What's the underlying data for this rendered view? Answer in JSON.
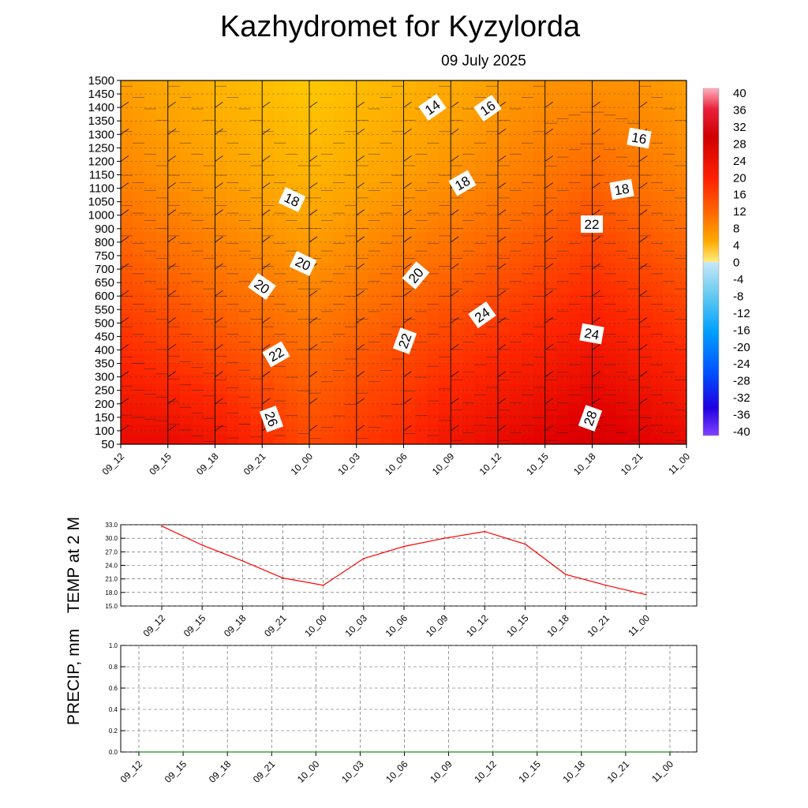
{
  "title": "Kazhydromet  for Kyzylorda",
  "subtitle": "09 July 2025",
  "colors": {
    "temp_line": "#ff0000",
    "precip_line": "#228b22",
    "contour": "#222222",
    "grid": "#555555"
  },
  "chart_data": [
    {
      "type": "heatmap",
      "name_hint": "vertical temperature cross-section",
      "x_categories": [
        "09_12",
        "09_15",
        "09_18",
        "09_21",
        "10_00",
        "10_03",
        "10_06",
        "10_09",
        "10_12",
        "10_15",
        "10_18",
        "10_21",
        "11_00"
      ],
      "y_levels": [
        50,
        100,
        150,
        200,
        250,
        300,
        350,
        400,
        450,
        500,
        550,
        600,
        650,
        700,
        750,
        800,
        900,
        1000,
        1050,
        1100,
        1150,
        1200,
        1250,
        1300,
        1350,
        1400,
        1450,
        1500
      ],
      "value_rows_bottom_to_top": [
        [
          27,
          27,
          26,
          24,
          22,
          23,
          24,
          26,
          27,
          28,
          29,
          28,
          27
        ],
        [
          24,
          23,
          22,
          21,
          20,
          21,
          22,
          23,
          24,
          25,
          26,
          25,
          24
        ],
        [
          21,
          20,
          19,
          18,
          17,
          18,
          19,
          20,
          21,
          22,
          23,
          22,
          21
        ],
        [
          18,
          17,
          16,
          15,
          14,
          15,
          16,
          17,
          18,
          19,
          20,
          19,
          18
        ],
        [
          16,
          15,
          14,
          13,
          12,
          13,
          14,
          15,
          16,
          17,
          17,
          17,
          16
        ]
      ],
      "contour_labels": [
        "14",
        "16",
        "16",
        "18",
        "18",
        "18",
        "20",
        "20",
        "20",
        "22",
        "22",
        "22",
        "24",
        "24",
        "26",
        "28"
      ],
      "colorbar": {
        "ticks": [
          "40",
          "36",
          "32",
          "28",
          "24",
          "20",
          "16",
          "12",
          "8",
          "4",
          "0",
          "-4",
          "-8",
          "-12",
          "-16",
          "-20",
          "-24",
          "-28",
          "-32",
          "-36",
          "-40"
        ],
        "range": [
          -40,
          40
        ]
      }
    },
    {
      "type": "line",
      "ylabel": "TEMP at 2 M",
      "x": [
        "09_12",
        "09_15",
        "09_18",
        "09_21",
        "10_00",
        "10_03",
        "10_06",
        "10_09",
        "10_12",
        "10_15",
        "10_18",
        "10_21",
        "11_00"
      ],
      "values": [
        32.7,
        28.5,
        25.0,
        21.2,
        19.6,
        25.5,
        28.2,
        30.0,
        31.5,
        28.7,
        22.0,
        19.6,
        17.5
      ],
      "yticks": [
        "15.0",
        "18.0",
        "21.0",
        "24.0",
        "27.0",
        "30.0",
        "33.0"
      ],
      "ylim": [
        15.0,
        33.0
      ],
      "grid": true
    },
    {
      "type": "line",
      "ylabel": "PRECIP, mm",
      "x": [
        "09_12",
        "09_15",
        "09_18",
        "09_21",
        "10_00",
        "10_03",
        "10_06",
        "10_09",
        "10_12",
        "10_15",
        "10_18",
        "10_21",
        "11_00"
      ],
      "values": [
        0,
        0,
        0,
        0,
        0,
        0,
        0,
        0,
        0,
        0,
        0,
        0,
        0
      ],
      "yticks": [
        "0.0",
        "0.2",
        "0.4",
        "0.6",
        "0.8",
        "1.0"
      ],
      "ylim": [
        0.0,
        1.0
      ],
      "grid": true
    }
  ]
}
